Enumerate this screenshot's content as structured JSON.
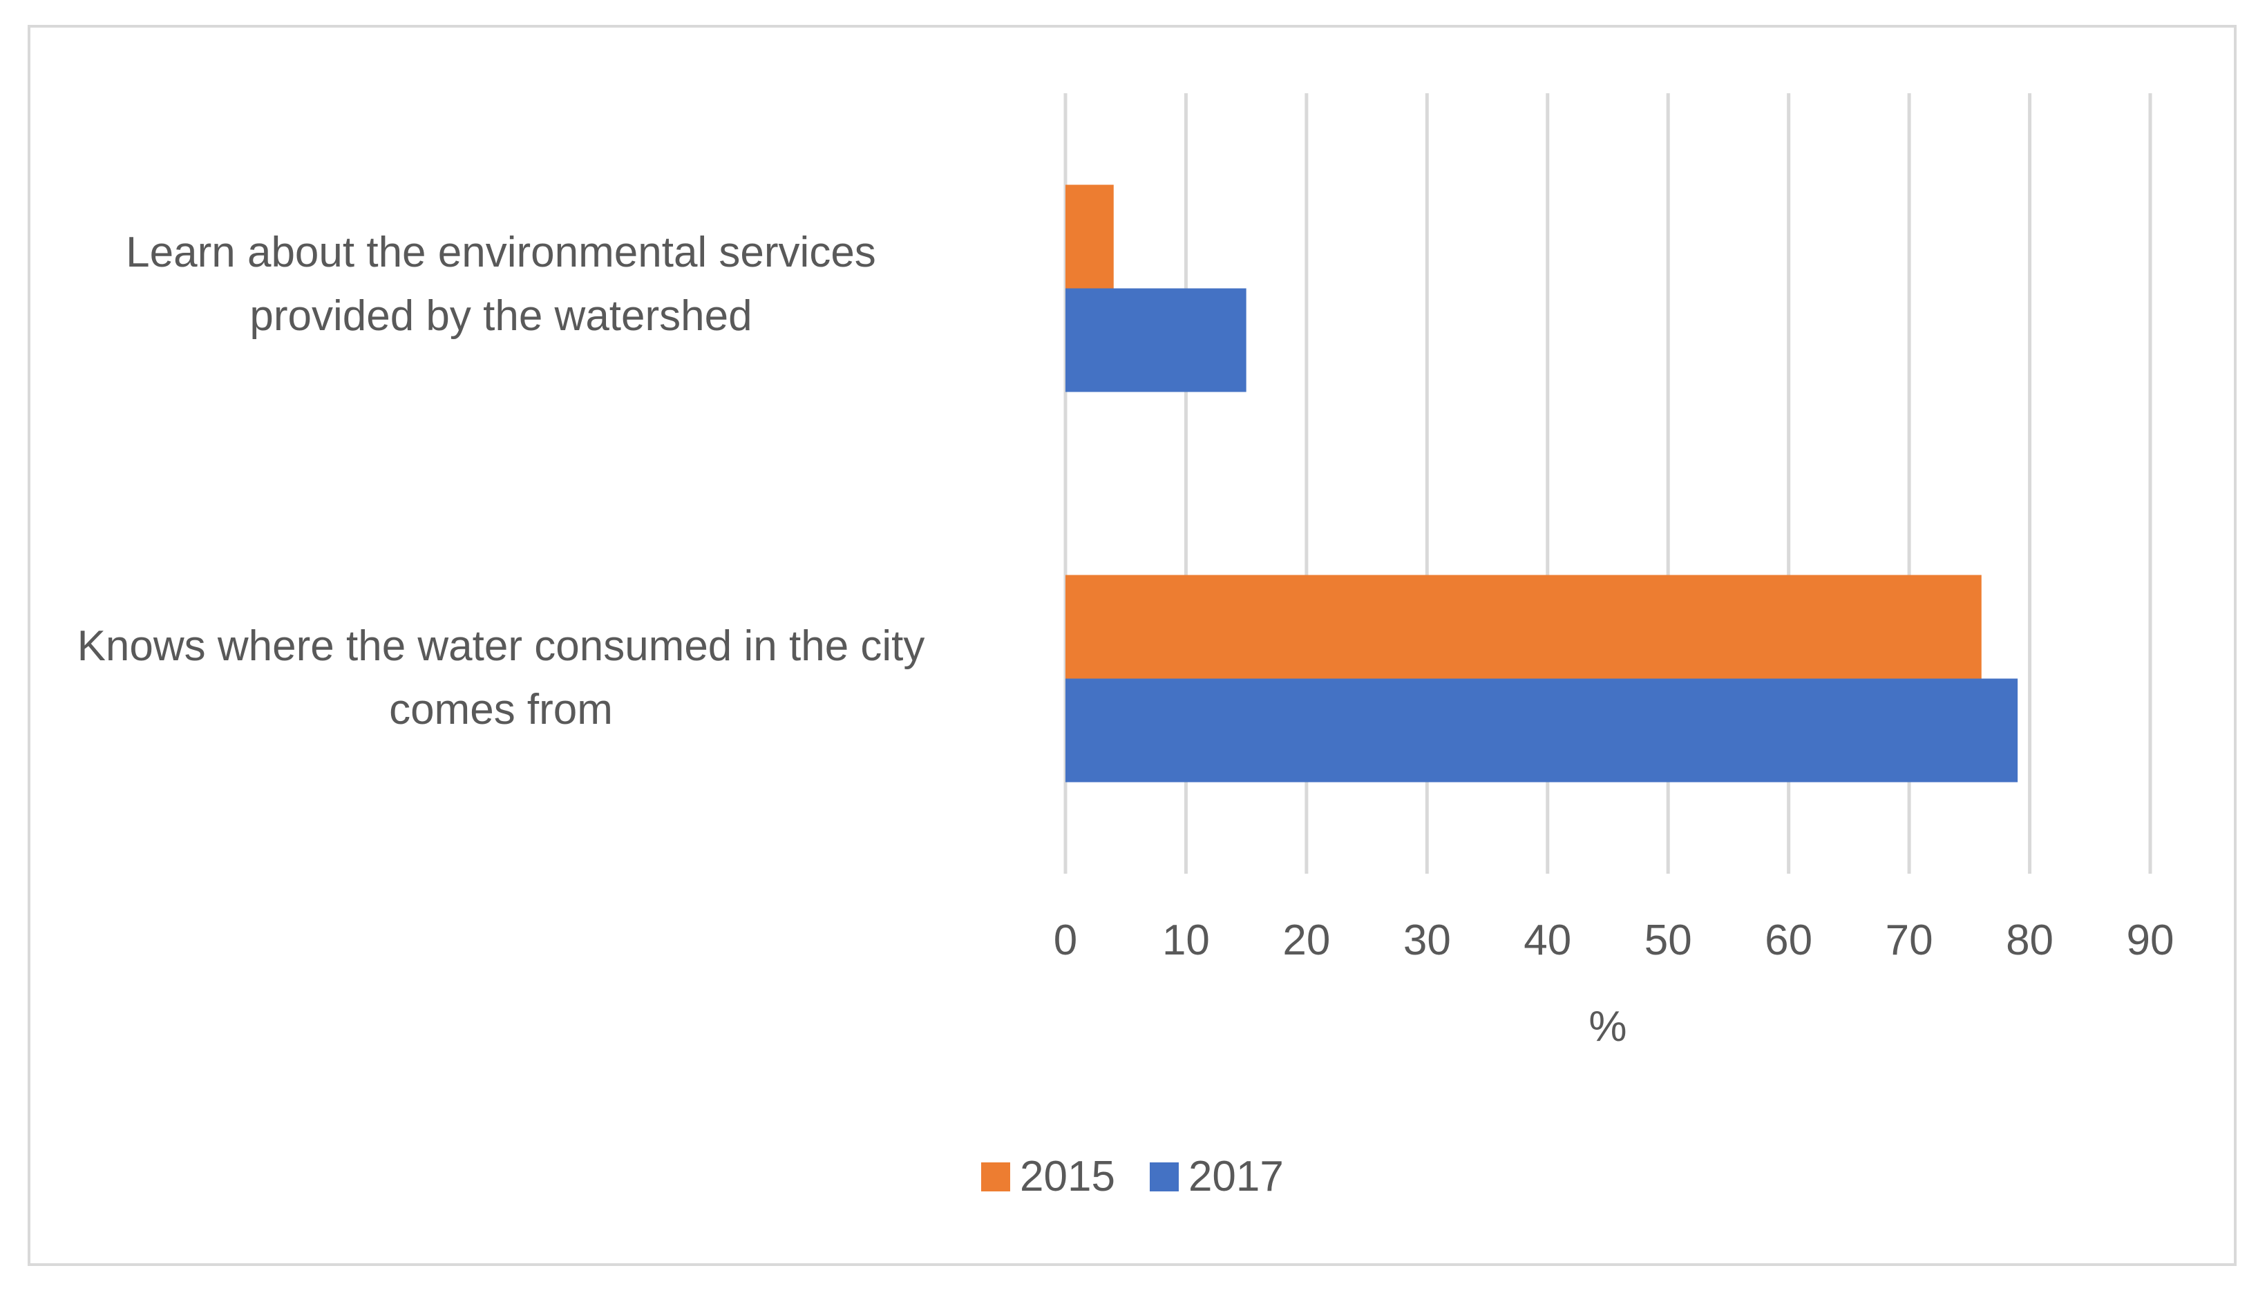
{
  "chart_data": {
    "type": "bar",
    "orientation": "horizontal",
    "title": "",
    "categories": [
      "Learn about the environmental services provided by the watershed",
      "Knows where the water consumed in the city comes from"
    ],
    "category_lines": [
      [
        "Learn about the environmental services",
        "provided by the watershed"
      ],
      [
        "Knows where the water consumed in the city",
        "comes from"
      ]
    ],
    "series": [
      {
        "name": "2015",
        "color": "#ed7d31",
        "values": [
          4,
          76
        ]
      },
      {
        "name": "2017",
        "color": "#4472c4",
        "values": [
          15,
          79
        ]
      }
    ],
    "xlabel": "%",
    "ylabel": "",
    "xlim": [
      0,
      90
    ],
    "xticks": [
      "0",
      "10",
      "20",
      "30",
      "40",
      "50",
      "60",
      "70",
      "80",
      "90"
    ],
    "grid": true,
    "legend_position": "bottom"
  }
}
